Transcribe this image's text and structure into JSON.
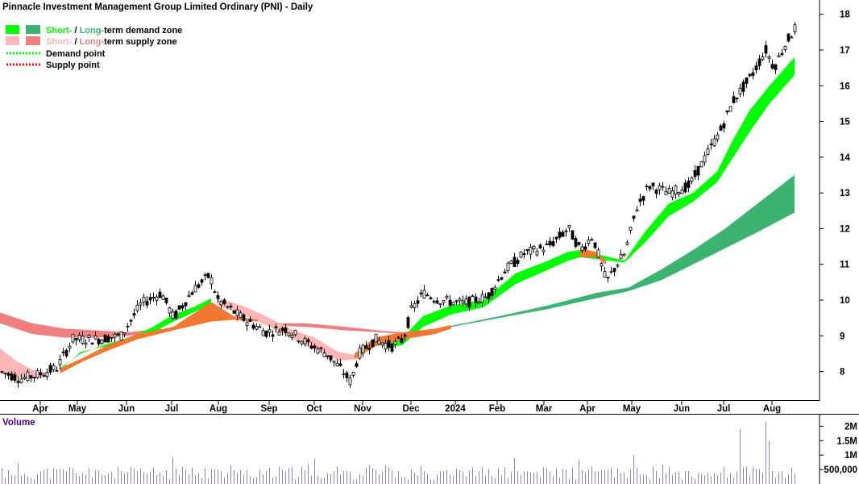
{
  "chart_data": {
    "type": "candlestick",
    "title": "Pinnacle Investment Management Group Limited Ordinary (PNI) - Daily",
    "legend": [
      {
        "prefix": "Short-",
        "mid": " / ",
        "long": "Long-",
        "suffix": "term demand zone",
        "short_color": "#00ff00",
        "long_color": "#3cb371"
      },
      {
        "prefix": "Short-",
        "mid": " / ",
        "long": "Long-",
        "suffix": "term supply zone",
        "short_color": "#ffb6b6",
        "long_color": "#f08080"
      },
      {
        "label": "Demand point",
        "color": "#00ff00"
      },
      {
        "label": "Supply point",
        "color": "#ff0000"
      }
    ],
    "x_tick_labels": [
      "Apr",
      "May",
      "Jun",
      "Jul",
      "Aug",
      "Sep",
      "Oct",
      "Nov",
      "Dec",
      "2024",
      "Feb",
      "Mar",
      "Apr",
      "May",
      "Jun",
      "Jul",
      "Aug"
    ],
    "y_ticks": [
      8,
      9,
      10,
      11,
      12,
      13,
      14,
      15,
      16,
      17,
      18
    ],
    "ylim": [
      7.2,
      18.4
    ],
    "price_path": [
      [
        0,
        8.0
      ],
      [
        25,
        7.8
      ],
      [
        45,
        7.9
      ],
      [
        70,
        8.1
      ],
      [
        90,
        8.9
      ],
      [
        120,
        8.9
      ],
      [
        150,
        9.0
      ],
      [
        175,
        9.9
      ],
      [
        200,
        10.2
      ],
      [
        215,
        9.5
      ],
      [
        240,
        10.3
      ],
      [
        260,
        10.7
      ],
      [
        270,
        10.0
      ],
      [
        300,
        9.5
      ],
      [
        330,
        9.1
      ],
      [
        355,
        9.2
      ],
      [
        380,
        8.8
      ],
      [
        405,
        8.5
      ],
      [
        425,
        8.0
      ],
      [
        435,
        7.7
      ],
      [
        445,
        8.5
      ],
      [
        465,
        8.9
      ],
      [
        485,
        8.7
      ],
      [
        500,
        8.9
      ],
      [
        510,
        9.7
      ],
      [
        525,
        10.2
      ],
      [
        545,
        10.0
      ],
      [
        575,
        9.9
      ],
      [
        605,
        10.1
      ],
      [
        625,
        10.8
      ],
      [
        650,
        11.3
      ],
      [
        680,
        11.5
      ],
      [
        705,
        12.0
      ],
      [
        720,
        11.4
      ],
      [
        735,
        11.8
      ],
      [
        752,
        10.5
      ],
      [
        765,
        11.0
      ],
      [
        775,
        11.3
      ],
      [
        790,
        12.6
      ],
      [
        805,
        13.2
      ],
      [
        830,
        13.0
      ],
      [
        855,
        13.2
      ],
      [
        875,
        14.0
      ],
      [
        895,
        14.8
      ],
      [
        910,
        15.6
      ],
      [
        930,
        16.2
      ],
      [
        950,
        17.0
      ],
      [
        960,
        16.5
      ],
      [
        975,
        17.2
      ],
      [
        986,
        17.6
      ]
    ],
    "short_demand_zone": [
      [
        75,
        8.1,
        8.05
      ],
      [
        100,
        8.5,
        8.55
      ],
      [
        130,
        8.75,
        8.7
      ],
      [
        160,
        8.95,
        8.85
      ],
      [
        190,
        9.25,
        9.1
      ],
      [
        215,
        9.6,
        9.4
      ],
      [
        240,
        9.8,
        9.65
      ],
      [
        262,
        10.05,
        9.9
      ],
      [
        480,
        8.85,
        8.65
      ],
      [
        500,
        8.95,
        8.75
      ],
      [
        525,
        9.55,
        9.25
      ],
      [
        560,
        9.85,
        9.6
      ],
      [
        600,
        10.0,
        9.8
      ],
      [
        640,
        10.75,
        10.45
      ],
      [
        680,
        11.1,
        10.85
      ],
      [
        705,
        11.35,
        11.1
      ],
      [
        720,
        11.4,
        11.2
      ],
      [
        775,
        11.1,
        11.05
      ],
      [
        800,
        11.9,
        11.6
      ],
      [
        830,
        12.7,
        12.35
      ],
      [
        860,
        13.0,
        12.75
      ],
      [
        890,
        13.6,
        13.3
      ],
      [
        910,
        14.5,
        14.0
      ],
      [
        930,
        15.3,
        14.7
      ],
      [
        955,
        16.0,
        15.5
      ],
      [
        986,
        16.8,
        16.3
      ]
    ],
    "long_demand_zone": [
      [
        560,
        9.28,
        9.25
      ],
      [
        620,
        9.55,
        9.5
      ],
      [
        680,
        9.85,
        9.75
      ],
      [
        740,
        10.2,
        10.05
      ],
      [
        780,
        10.35,
        10.25
      ],
      [
        820,
        10.85,
        10.55
      ],
      [
        860,
        11.4,
        11.0
      ],
      [
        900,
        12.0,
        11.45
      ],
      [
        940,
        12.7,
        11.9
      ],
      [
        986,
        13.5,
        12.45
      ]
    ],
    "short_supply_zone": [
      [
        0,
        8.65,
        7.95
      ],
      [
        20,
        8.3,
        7.85
      ],
      [
        40,
        8.05,
        7.8
      ],
      [
        60,
        7.95,
        7.85
      ],
      [
        270,
        10.05,
        9.85
      ],
      [
        300,
        9.85,
        9.6
      ],
      [
        330,
        9.55,
        9.3
      ],
      [
        360,
        9.2,
        8.95
      ],
      [
        390,
        8.95,
        8.6
      ],
      [
        420,
        8.55,
        8.3
      ],
      [
        445,
        8.45,
        8.35
      ]
    ],
    "long_supply_zone": [
      [
        0,
        9.65,
        9.35
      ],
      [
        40,
        9.35,
        9.05
      ],
      [
        80,
        9.2,
        8.95
      ],
      [
        120,
        9.15,
        8.95
      ],
      [
        160,
        9.1,
        9.0
      ],
      [
        200,
        9.2,
        9.15
      ],
      [
        330,
        9.35,
        9.3
      ],
      [
        380,
        9.35,
        9.25
      ],
      [
        430,
        9.25,
        9.15
      ],
      [
        470,
        9.15,
        9.1
      ],
      [
        500,
        9.1,
        9.05
      ]
    ],
    "mixed_zone": [
      [
        75,
        8.1,
        7.95
      ],
      [
        100,
        8.35,
        8.25
      ],
      [
        130,
        8.7,
        8.55
      ],
      [
        170,
        9.05,
        8.9
      ],
      [
        215,
        9.25,
        9.15
      ],
      [
        262,
        9.95,
        9.4
      ],
      [
        290,
        9.55,
        9.45
      ],
      [
        320,
        9.45,
        9.4
      ],
      [
        440,
        8.5,
        8.35
      ],
      [
        465,
        8.95,
        8.7
      ],
      [
        500,
        9.1,
        8.9
      ],
      [
        540,
        9.2,
        9.05
      ],
      [
        560,
        9.3,
        9.2
      ],
      [
        720,
        11.45,
        11.2
      ],
      [
        740,
        11.35,
        11.2
      ],
      [
        752,
        11.1,
        11.0
      ]
    ],
    "volume_label": "Volume",
    "volume_ticks": [
      {
        "label": "2M",
        "v": 2000000
      },
      {
        "label": "1.5M",
        "v": 1500000
      },
      {
        "label": "1M",
        "v": 1000000
      },
      {
        "label": "500,000",
        "v": 500000
      }
    ],
    "volume_ylim": [
      0,
      2400000
    ],
    "volume_spikes": [
      [
        268,
        1800000
      ],
      [
        608,
        1950000
      ],
      [
        918,
        1900000
      ],
      [
        950,
        2150000
      ],
      [
        955,
        1500000
      ],
      [
        940,
        1200000
      ],
      [
        960,
        1350000
      ],
      [
        120,
        900000
      ],
      [
        390,
        850000
      ],
      [
        700,
        900000
      ],
      [
        785,
        1000000
      ]
    ]
  }
}
